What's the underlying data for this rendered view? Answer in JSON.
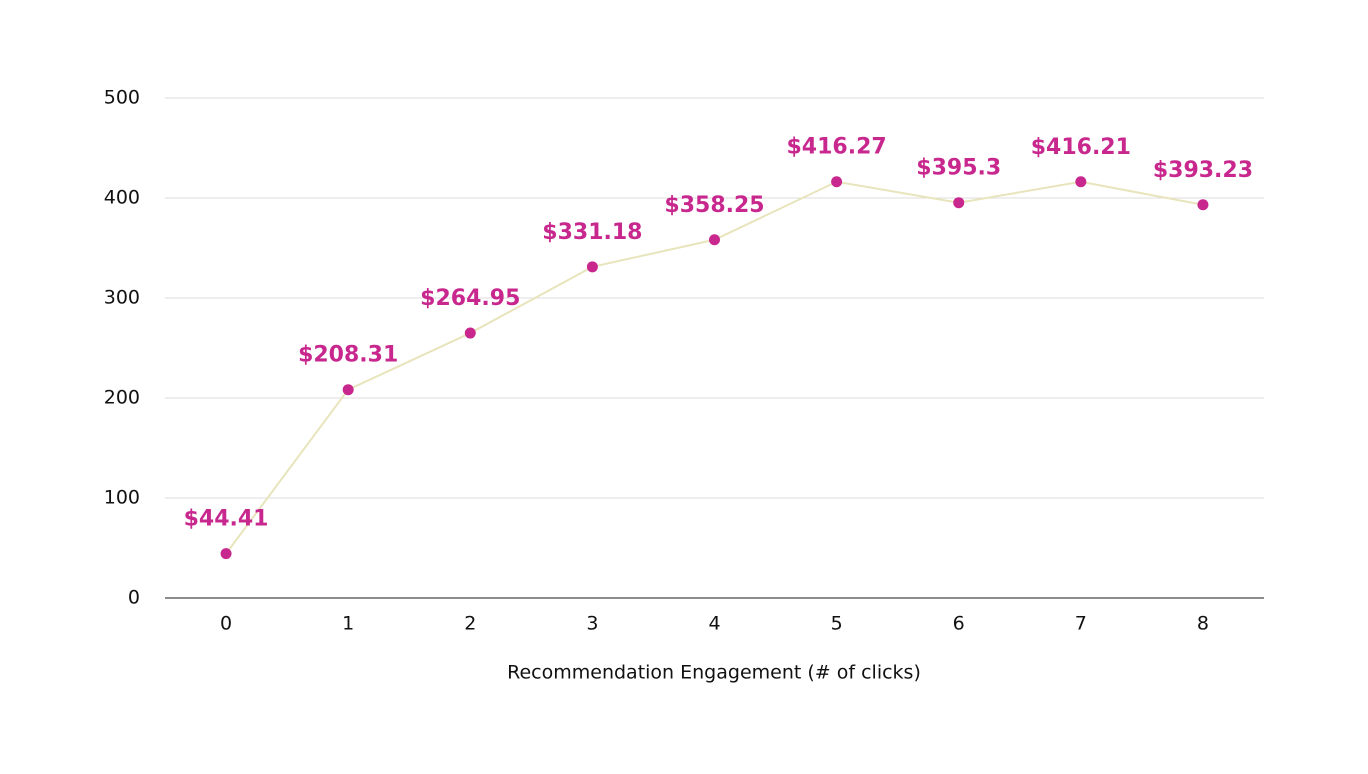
{
  "chart_data": {
    "type": "line",
    "x_label": "Recommendation Engagement (# of clicks)",
    "categories": [
      0,
      1,
      2,
      3,
      4,
      5,
      6,
      7,
      8
    ],
    "values": [
      44.41,
      208.31,
      264.95,
      331.18,
      358.25,
      416.27,
      395.3,
      416.21,
      393.23
    ],
    "value_labels": [
      "$44.41",
      "$208.31",
      "$264.95",
      "$331.18",
      "$358.25",
      "$416.27",
      "$395.3",
      "$416.21",
      "$393.23"
    ],
    "line_color": "#e8e4bc",
    "marker_color": "#c8288e",
    "label_color": "#c8288e",
    "ylim": [
      0,
      500
    ],
    "yticks": [
      0,
      100,
      200,
      300,
      400,
      500
    ],
    "grid": true
  }
}
